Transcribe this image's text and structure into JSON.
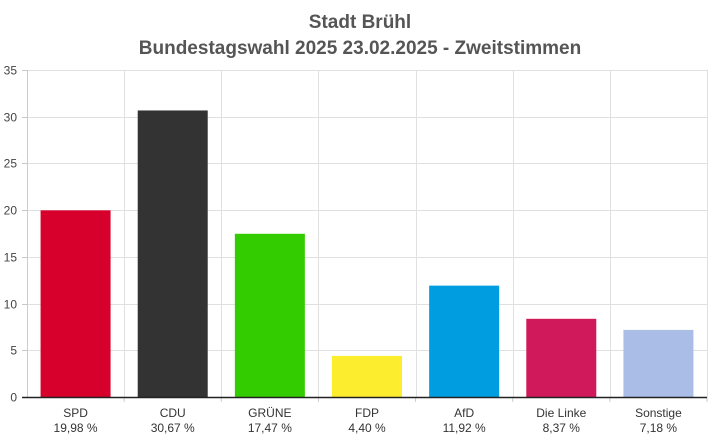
{
  "chart_data": {
    "type": "bar",
    "title": "Stadt Brühl",
    "subtitle": "Bundestagswahl 2025 23.02.2025  - Zweitstimmen",
    "xlabel": "",
    "ylabel": "",
    "ylim": [
      0,
      35
    ],
    "yticks": [
      0,
      5,
      10,
      15,
      20,
      25,
      30,
      35
    ],
    "grid": true,
    "categories": [
      "SPD",
      "CDU",
      "GRÜNE",
      "FDP",
      "AfD",
      "Die Linke",
      "Sonstige"
    ],
    "values": [
      19.98,
      30.67,
      17.47,
      4.4,
      11.92,
      8.37,
      7.18
    ],
    "value_labels": [
      "19,98 %",
      "30,67 %",
      "17,47 %",
      "4,40 %",
      "11,92 %",
      "8,37 %",
      "7,18 %"
    ],
    "colors": [
      "#d7002c",
      "#333333",
      "#33cc00",
      "#fcee2e",
      "#009ee0",
      "#d0195b",
      "#aabde6"
    ]
  }
}
